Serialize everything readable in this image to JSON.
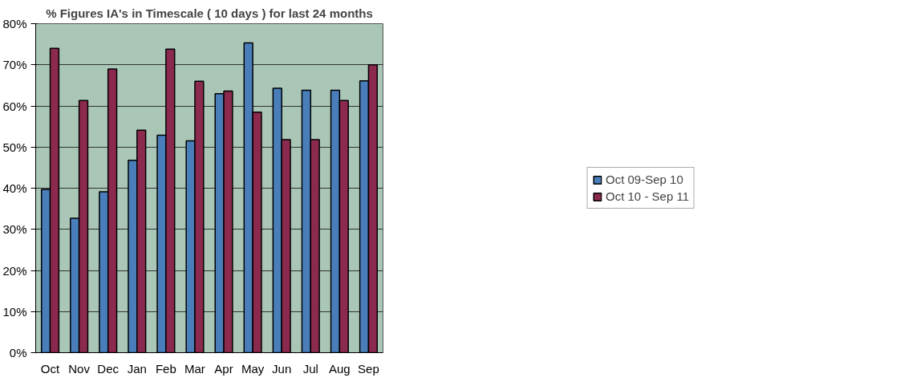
{
  "chart_data": {
    "type": "bar",
    "title": "% Figures IA's in Timescale ( 10 days ) for last 24 months",
    "categories": [
      "Oct",
      "Nov",
      "Dec",
      "Jan",
      "Feb",
      "Mar",
      "Apr",
      "May",
      "Jun",
      "Jul",
      "Aug",
      "Sep"
    ],
    "series": [
      {
        "name": "Oct 09-Sep 10",
        "color": "#4a7ebb",
        "values": [
          39.7,
          32.7,
          39.1,
          46.8,
          52.9,
          51.5,
          63,
          75.3,
          64.3,
          63.8,
          63.8,
          66.1
        ]
      },
      {
        "name": "Oct 10 - Sep 11",
        "color": "#8b2a4e",
        "values": [
          74,
          61.3,
          69,
          54.1,
          73.8,
          66,
          63.6,
          58.5,
          51.8,
          51.8,
          61.3,
          70
        ]
      }
    ],
    "ylim": [
      0,
      80
    ],
    "yticks": [
      {
        "value": 0,
        "label": "0%"
      },
      {
        "value": 10,
        "label": "10%"
      },
      {
        "value": 20,
        "label": "20%"
      },
      {
        "value": 30,
        "label": "30%"
      },
      {
        "value": 40,
        "label": "40%"
      },
      {
        "value": 50,
        "label": "50%"
      },
      {
        "value": 60,
        "label": "60%"
      },
      {
        "value": 70,
        "label": "70%"
      },
      {
        "value": 80,
        "label": "80%"
      }
    ],
    "grid": "y",
    "legend": "right"
  }
}
